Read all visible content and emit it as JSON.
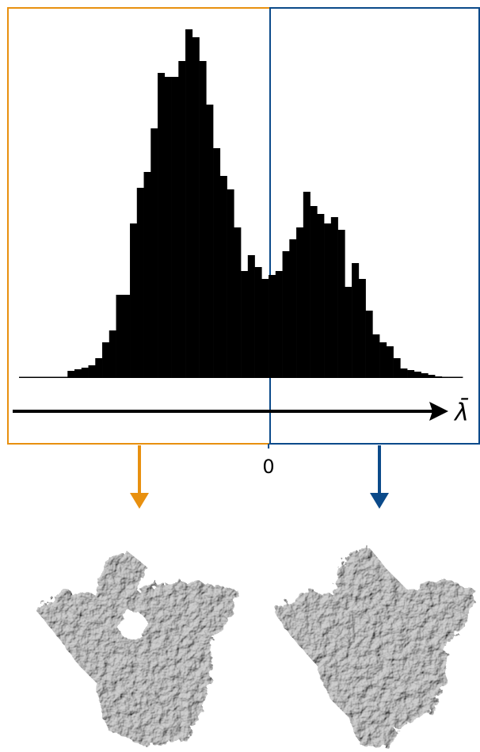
{
  "chart_data": {
    "type": "histogram",
    "xlabel": "λ̄",
    "bins": [
      -36,
      -35,
      -34,
      -33,
      -32,
      -31,
      -30,
      -29,
      -28,
      -27,
      -26,
      -25,
      -24,
      -23,
      -22,
      -21,
      -20,
      -19,
      -18,
      -17,
      -16,
      -15,
      -14,
      -13,
      -12,
      -11,
      -10,
      -9,
      -8,
      -7,
      -6,
      -5,
      -4,
      -3,
      -2,
      -1,
      0,
      1,
      2,
      3,
      4,
      5,
      6,
      7,
      8,
      9,
      10,
      11,
      12,
      13,
      14,
      15,
      16,
      17,
      18,
      19,
      20,
      21,
      22,
      23,
      24,
      25,
      26,
      27,
      28
    ],
    "values": [
      1,
      0,
      0,
      0,
      0,
      1,
      1,
      9,
      11,
      13,
      16,
      25,
      45,
      60,
      105,
      105,
      195,
      240,
      260,
      315,
      385,
      380,
      380,
      400,
      440,
      430,
      400,
      345,
      290,
      255,
      238,
      190,
      135,
      155,
      140,
      125,
      130,
      135,
      160,
      175,
      190,
      235,
      217,
      207,
      195,
      203,
      187,
      115,
      145,
      125,
      85,
      55,
      45,
      40,
      25,
      12,
      10,
      8,
      6,
      4,
      2,
      1,
      0,
      1
    ],
    "color": "#000000",
    "xlim": [
      -37.6,
      30.5
    ],
    "ylim": [
      0,
      445
    ],
    "xticks": [
      0
    ]
  }
}
